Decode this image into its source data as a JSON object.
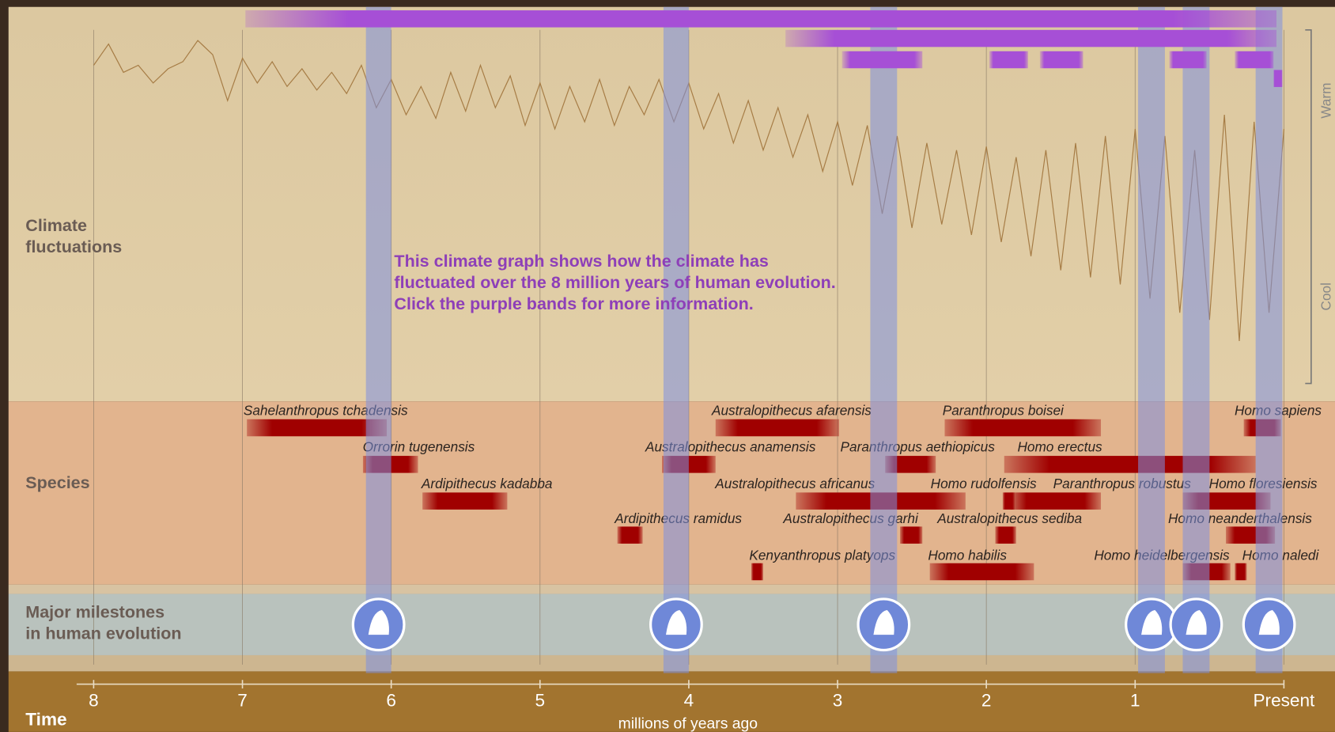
{
  "climate_panel": {
    "label_lines": [
      "Climate",
      "fluctuations"
    ],
    "note_lines": [
      "This climate graph shows how the climate has",
      "fluctuated over the 8 million years of human evolution.",
      "Click the purple bands for more information."
    ],
    "scale_top": "Warm",
    "scale_bottom": "Cool",
    "climate": {
      "x": [
        8.0,
        7.9,
        7.8,
        7.7,
        7.6,
        7.5,
        7.4,
        7.3,
        7.2,
        7.1,
        7.0,
        6.9,
        6.8,
        6.7,
        6.6,
        6.5,
        6.4,
        6.3,
        6.2,
        6.1,
        6.0,
        5.9,
        5.8,
        5.7,
        5.6,
        5.5,
        5.4,
        5.3,
        5.2,
        5.1,
        5.0,
        4.9,
        4.8,
        4.7,
        4.6,
        4.5,
        4.4,
        4.3,
        4.2,
        4.1,
        4.0,
        3.9,
        3.8,
        3.7,
        3.6,
        3.5,
        3.4,
        3.3,
        3.2,
        3.1,
        3.0,
        2.9,
        2.8,
        2.7,
        2.6,
        2.5,
        2.4,
        2.3,
        2.2,
        2.1,
        2.0,
        1.9,
        1.8,
        1.7,
        1.6,
        1.5,
        1.4,
        1.3,
        1.2,
        1.1,
        1.0,
        0.9,
        0.8,
        0.7,
        0.6,
        0.5,
        0.4,
        0.3,
        0.2,
        0.1,
        0.0
      ],
      "values": [
        90,
        96,
        88,
        90,
        85,
        89,
        91,
        97,
        93,
        80,
        92,
        85,
        91,
        84,
        89,
        83,
        88,
        82,
        90,
        78,
        86,
        76,
        84,
        75,
        88,
        77,
        90,
        78,
        87,
        73,
        85,
        72,
        84,
        74,
        86,
        73,
        84,
        76,
        86,
        74,
        85,
        72,
        82,
        68,
        80,
        66,
        78,
        64,
        76,
        60,
        74,
        56,
        73,
        48,
        70,
        44,
        68,
        45,
        66,
        42,
        67,
        40,
        64,
        36,
        66,
        32,
        68,
        30,
        70,
        28,
        72,
        24,
        70,
        20,
        66,
        18,
        76,
        12,
        74,
        20,
        72
      ],
      "ylim": [
        0,
        100
      ]
    },
    "purple_bands": [
      {
        "start": 6.98,
        "end": 0.05
      },
      {
        "start": 3.35,
        "end": 0.05
      },
      {
        "start": 2.97,
        "end": 2.43
      },
      {
        "start": 1.98,
        "end": 1.72
      },
      {
        "start": 1.64,
        "end": 1.35
      },
      {
        "start": 0.77,
        "end": 0.52
      },
      {
        "start": 0.33,
        "end": 0.07
      },
      {
        "start": 0.07,
        "end": 0.01
      }
    ]
  },
  "highlight_bands": [
    {
      "start": 6.17,
      "end": 6.0
    },
    {
      "start": 4.17,
      "end": 4.0
    },
    {
      "start": 2.78,
      "end": 2.6
    },
    {
      "start": 0.98,
      "end": 0.8
    },
    {
      "start": 0.68,
      "end": 0.5
    },
    {
      "start": 0.19,
      "end": 0.01
    }
  ],
  "species": {
    "label": "Species",
    "items": [
      {
        "name": "Sahelanthropus tchadensis",
        "start": 6.97,
        "end": 6.03
      },
      {
        "name": "Orrorin tugenensis",
        "start": 6.19,
        "end": 5.82
      },
      {
        "name": "Ardipithecus kadabba",
        "start": 5.79,
        "end": 5.22
      },
      {
        "name": "Ardipithecus ramidus",
        "start": 4.48,
        "end": 4.31
      },
      {
        "name": "Kenyanthropus platyops",
        "start": 3.58,
        "end": 3.5
      },
      {
        "name": "Australopithecus afarensis",
        "start": 3.82,
        "end": 2.99
      },
      {
        "name": "Australopithecus anamensis",
        "start": 4.18,
        "end": 3.82
      },
      {
        "name": "Paranthropus aethiopicus",
        "start": 2.68,
        "end": 2.34
      },
      {
        "name": "Australopithecus africanus",
        "start": 3.28,
        "end": 2.14
      },
      {
        "name": "Australopithecus garhi",
        "start": 2.58,
        "end": 2.43
      },
      {
        "name": "Paranthropus boisei",
        "start": 2.28,
        "end": 1.23
      },
      {
        "name": "Homo erectus",
        "start": 1.88,
        "end": 0.19
      },
      {
        "name": "Homo rudolfensis",
        "start": 1.89,
        "end": 1.81
      },
      {
        "name": "Paranthropus robustus",
        "start": 1.84,
        "end": 1.23
      },
      {
        "name": "Australopithecus sediba",
        "start": 1.94,
        "end": 1.8
      },
      {
        "name": "Homo habilis",
        "start": 2.38,
        "end": 1.68
      },
      {
        "name": "Homo sapiens",
        "start": 0.27,
        "end": 0.02
      },
      {
        "name": "Homo floresiensis",
        "start": 0.68,
        "end": 0.09
      },
      {
        "name": "Homo neanderthalensis",
        "start": 0.39,
        "end": 0.06
      },
      {
        "name": "Homo heidelbergensis",
        "start": 0.68,
        "end": 0.36
      },
      {
        "name": "Homo naledi",
        "start": 0.33,
        "end": 0.25
      }
    ]
  },
  "milestones": {
    "label_lines": [
      "Major milestones",
      "in human evolution"
    ]
  },
  "time_axis": {
    "label": "Time",
    "unit_label": "millions of years ago",
    "xlim": [
      8,
      0
    ],
    "xticks": [
      8,
      7,
      6,
      5,
      4,
      3,
      2,
      1,
      {
        "value": 0,
        "label": "Present"
      }
    ]
  }
}
